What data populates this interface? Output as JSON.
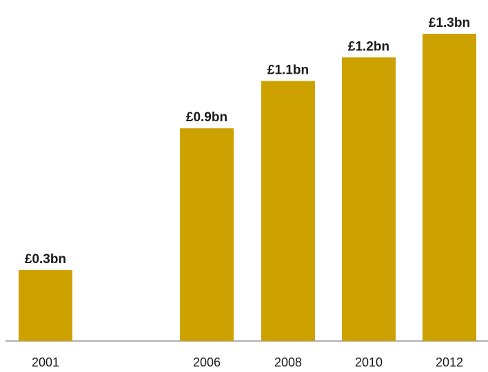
{
  "chart_data": {
    "type": "bar",
    "categories": [
      "2001",
      "2006",
      "2008",
      "2010",
      "2012"
    ],
    "values": [
      0.3,
      0.9,
      1.1,
      1.2,
      1.3
    ],
    "value_labels": [
      "£0.3bn",
      "£0.9bn",
      "£1.1bn",
      "£1.2bn",
      "£1.3bn"
    ],
    "ylim": [
      0,
      1.3
    ],
    "grid": false,
    "legend": "none",
    "colors": {
      "bar": "#CDA200",
      "axis": "#b0b0b0",
      "text": "#1a1a1a"
    }
  }
}
